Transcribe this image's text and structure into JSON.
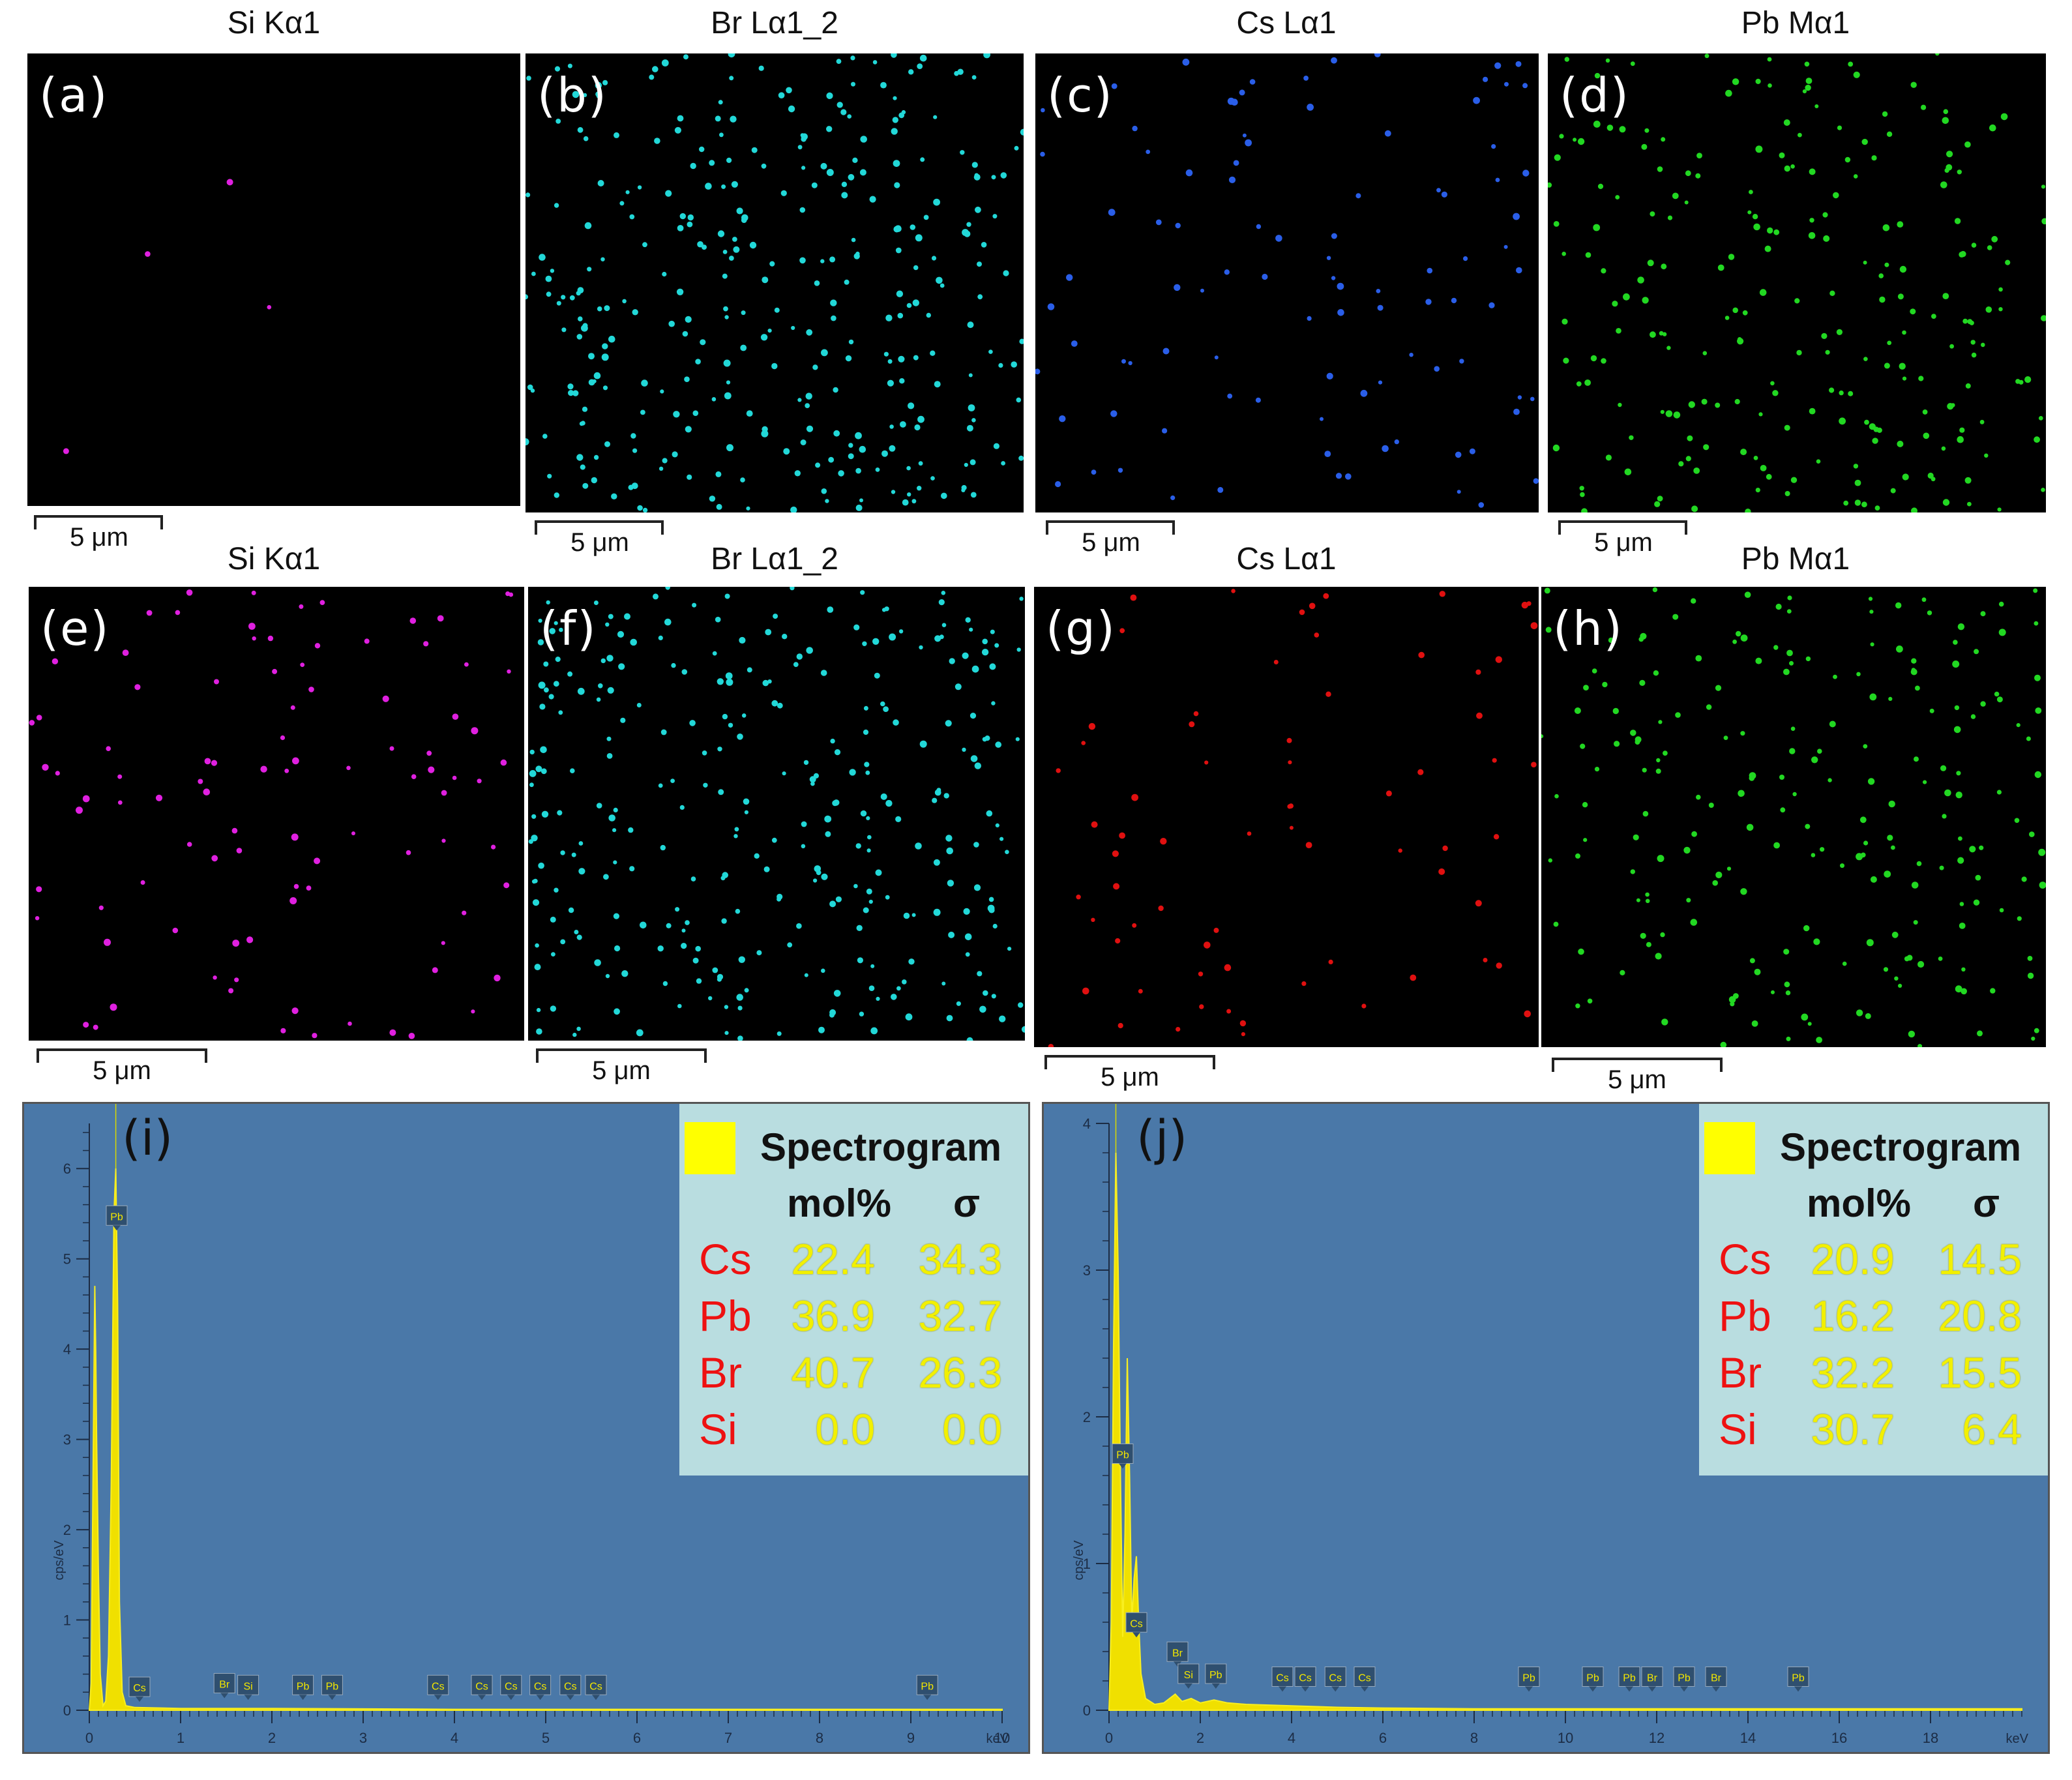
{
  "top_row": [
    {
      "panel": "(a)",
      "title": "Si Kα1",
      "color": "#e020e0",
      "scale": "5 μm"
    },
    {
      "panel": "(b)",
      "title": "Br Lα1_2",
      "color": "#22d8d8",
      "scale": "5 μm"
    },
    {
      "panel": "(c)",
      "title": "Cs Lα1",
      "color": "#2a5ee8",
      "scale": "5 μm"
    },
    {
      "panel": "(d)",
      "title": "Pb Mα1",
      "color": "#22d822",
      "scale": "5 μm"
    }
  ],
  "bottom_row": [
    {
      "panel": "(e)",
      "title": "Si Kα1",
      "color": "#e020e0",
      "scale": "5 μm"
    },
    {
      "panel": "(f)",
      "title": "Br Lα1_2",
      "color": "#22d8d8",
      "scale": "5 μm"
    },
    {
      "panel": "(g)",
      "title": "Cs Lα1",
      "color": "#e01010",
      "scale": "5 μm"
    },
    {
      "panel": "(h)",
      "title": "Pb Mα1",
      "color": "#22d822",
      "scale": "5 μm"
    }
  ],
  "chart_data": [
    {
      "type": "area",
      "panel": "(i)",
      "xlabel": "keV",
      "ylabel": "cps/eV",
      "xlim": [
        0,
        10
      ],
      "ylim": [
        0,
        6.5
      ],
      "xticks": [
        "0",
        "1",
        "2",
        "3",
        "4",
        "5",
        "6",
        "7",
        "8",
        "9",
        "10"
      ],
      "yticks": [
        "0",
        "1",
        "2",
        "3",
        "4",
        "5",
        "6"
      ],
      "x": [
        0.0,
        0.02,
        0.04,
        0.06,
        0.07,
        0.08,
        0.1,
        0.12,
        0.15,
        0.18,
        0.21,
        0.24,
        0.27,
        0.29,
        0.31,
        0.33,
        0.36,
        0.4,
        0.5,
        1,
        2,
        3,
        4,
        5,
        6,
        7,
        8,
        9,
        10
      ],
      "y": [
        0,
        0.3,
        2.5,
        4.7,
        4.0,
        3.0,
        1.5,
        0.4,
        0.05,
        0.1,
        0.6,
        2.5,
        5.5,
        6.0,
        4.5,
        1.2,
        0.2,
        0.05,
        0.03,
        0.02,
        0.02,
        0.015,
        0.01,
        0.01,
        0.01,
        0.01,
        0.01,
        0.01,
        0.01
      ],
      "peak_labels": [
        {
          "x": 0.3,
          "y": 5.4,
          "text": "Pb"
        },
        {
          "x": 0.55,
          "y": 0.18,
          "text": "Cs"
        },
        {
          "x": 1.48,
          "y": 0.22,
          "text": "Br"
        },
        {
          "x": 1.74,
          "y": 0.2,
          "text": "Si"
        },
        {
          "x": 2.34,
          "y": 0.2,
          "text": "Pb"
        },
        {
          "x": 2.66,
          "y": 0.2,
          "text": "Pb"
        },
        {
          "x": 3.82,
          "y": 0.2,
          "text": "Cs"
        },
        {
          "x": 4.3,
          "y": 0.2,
          "text": "Cs"
        },
        {
          "x": 4.62,
          "y": 0.2,
          "text": "Cs"
        },
        {
          "x": 4.94,
          "y": 0.2,
          "text": "Cs"
        },
        {
          "x": 5.27,
          "y": 0.2,
          "text": "Cs"
        },
        {
          "x": 5.55,
          "y": 0.2,
          "text": "Cs"
        },
        {
          "x": 9.18,
          "y": 0.2,
          "text": "Pb"
        }
      ],
      "legend": {
        "title": "Spectrogram",
        "columns": [
          "mol%",
          "σ"
        ],
        "rows": [
          {
            "element": "Cs",
            "mol": "22.4",
            "sigma": "34.3"
          },
          {
            "element": "Pb",
            "mol": "36.9",
            "sigma": "32.7"
          },
          {
            "element": "Br",
            "mol": "40.7",
            "sigma": "26.3"
          },
          {
            "element": "Si",
            "mol": "0.0",
            "sigma": "0.0"
          }
        ]
      }
    },
    {
      "type": "area",
      "panel": "(j)",
      "xlabel": "keV",
      "ylabel": "cps/eV",
      "xlim": [
        0,
        20
      ],
      "ylim": [
        0,
        4.0
      ],
      "xticks": [
        "0",
        "2",
        "4",
        "6",
        "8",
        "10",
        "12",
        "14",
        "16",
        "18"
      ],
      "yticks": [
        "0",
        "1",
        "2",
        "3",
        "4"
      ],
      "x": [
        0.0,
        0.05,
        0.1,
        0.15,
        0.2,
        0.25,
        0.3,
        0.35,
        0.4,
        0.45,
        0.5,
        0.55,
        0.6,
        0.65,
        0.7,
        0.8,
        1.0,
        1.2,
        1.45,
        1.6,
        1.8,
        2.0,
        2.3,
        2.6,
        3,
        4,
        5,
        6,
        8,
        10,
        12,
        14,
        16,
        18,
        20
      ],
      "y": [
        0,
        0.6,
        2.5,
        3.8,
        3.0,
        1.6,
        0.5,
        1.2,
        2.4,
        1.6,
        0.6,
        0.9,
        1.05,
        0.6,
        0.25,
        0.08,
        0.04,
        0.05,
        0.11,
        0.06,
        0.08,
        0.05,
        0.07,
        0.05,
        0.04,
        0.03,
        0.02,
        0.015,
        0.01,
        0.01,
        0.01,
        0.01,
        0.01,
        0.01,
        0.01
      ],
      "peak_labels": [
        {
          "x": 0.3,
          "y": 1.7,
          "text": "Pb"
        },
        {
          "x": 0.6,
          "y": 0.55,
          "text": "Cs"
        },
        {
          "x": 1.5,
          "y": 0.35,
          "text": "Br"
        },
        {
          "x": 1.74,
          "y": 0.2,
          "text": "Si"
        },
        {
          "x": 2.34,
          "y": 0.2,
          "text": "Pb"
        },
        {
          "x": 3.8,
          "y": 0.18,
          "text": "Cs"
        },
        {
          "x": 4.3,
          "y": 0.18,
          "text": "Cs"
        },
        {
          "x": 4.96,
          "y": 0.18,
          "text": "Cs"
        },
        {
          "x": 5.6,
          "y": 0.18,
          "text": "Cs"
        },
        {
          "x": 9.2,
          "y": 0.18,
          "text": "Pb"
        },
        {
          "x": 10.6,
          "y": 0.18,
          "text": "Pb"
        },
        {
          "x": 11.4,
          "y": 0.18,
          "text": "Pb"
        },
        {
          "x": 11.9,
          "y": 0.18,
          "text": "Br"
        },
        {
          "x": 12.6,
          "y": 0.18,
          "text": "Pb"
        },
        {
          "x": 13.3,
          "y": 0.18,
          "text": "Br"
        },
        {
          "x": 15.1,
          "y": 0.18,
          "text": "Pb"
        }
      ],
      "legend": {
        "title": "Spectrogram",
        "columns": [
          "mol%",
          "σ"
        ],
        "rows": [
          {
            "element": "Cs",
            "mol": "20.9",
            "sigma": "14.5"
          },
          {
            "element": "Pb",
            "mol": "16.2",
            "sigma": "20.8"
          },
          {
            "element": "Br",
            "mol": "32.2",
            "sigma": "15.5"
          },
          {
            "element": "Si",
            "mol": "30.7",
            "sigma": "6.4"
          }
        ]
      }
    }
  ]
}
